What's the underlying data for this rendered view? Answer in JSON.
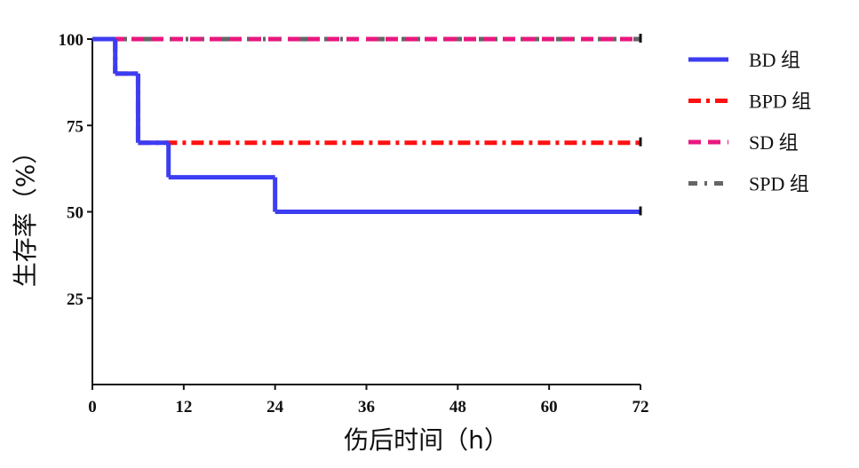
{
  "chart_data": {
    "type": "step-line",
    "x_label": "伤后时间（h）",
    "y_label": "生存率（%）",
    "xlim": [
      0,
      72
    ],
    "xticks": [
      0,
      12,
      24,
      36,
      48,
      60,
      72
    ],
    "ylim": [
      0,
      100
    ],
    "yticks": [
      25,
      50,
      75,
      100
    ],
    "series": [
      {
        "name": "BD 组",
        "color": "#3d3df2",
        "style": "solid",
        "x": [
          0,
          3,
          6,
          10,
          24,
          72
        ],
        "values": [
          100,
          90,
          70,
          60,
          50,
          50
        ]
      },
      {
        "name": "BPD 组",
        "color": "#ff1010",
        "style": "dashdot",
        "x": [
          0,
          3,
          6,
          72
        ],
        "values": [
          100,
          90,
          70,
          70
        ]
      },
      {
        "name": "SD 组",
        "color": "#e8177f",
        "style": "dashed",
        "x": [
          0,
          72
        ],
        "values": [
          100,
          100
        ]
      },
      {
        "name": "SPD 组",
        "color": "#666666",
        "style": "dotted",
        "x": [
          0,
          72
        ],
        "values": [
          100,
          100
        ]
      }
    ]
  }
}
